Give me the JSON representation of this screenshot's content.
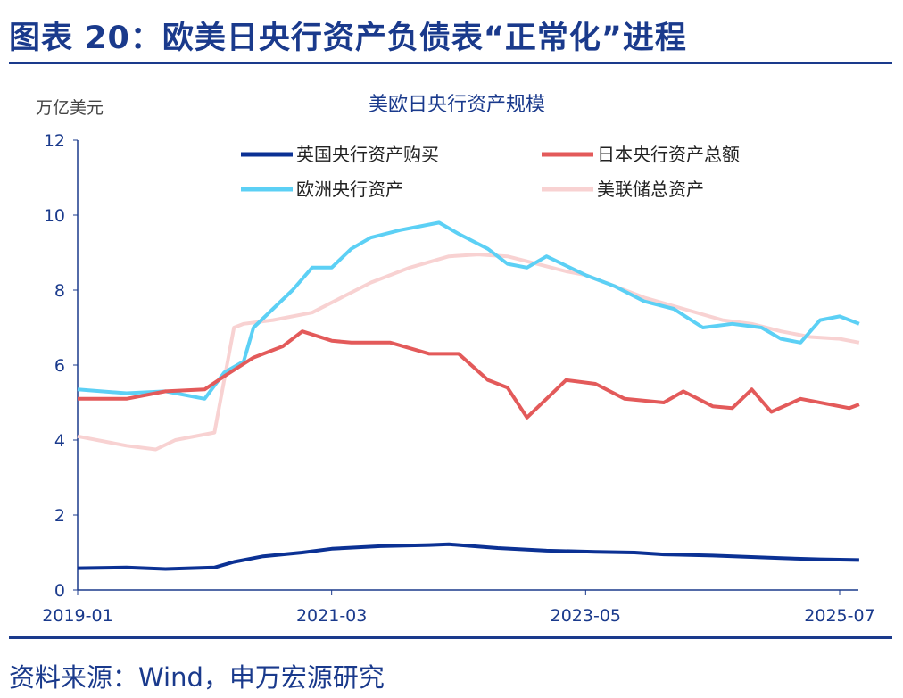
{
  "header": {
    "title": "图表 20：欧美日央行资产负债表“正常化”进程"
  },
  "footer": {
    "source": "资料来源：Wind，申万宏源研究"
  },
  "chart_data": {
    "type": "line",
    "title": "美欧日央行资产规模",
    "ylabel": "万亿美元",
    "xlabel": "",
    "ylim": [
      0,
      12
    ],
    "yticks": [
      "0",
      "2",
      "4",
      "6",
      "8",
      "10",
      "12"
    ],
    "xticks": [
      "2019-01",
      "2021-03",
      "2023-05",
      "2025-07"
    ],
    "grid": false,
    "legend": "top",
    "series": [
      {
        "name": "英国央行资产购买",
        "color": "#0b3194",
        "points": [
          [
            "2019-01",
            0.58
          ],
          [
            "2019-06",
            0.6
          ],
          [
            "2019-10",
            0.56
          ],
          [
            "2020-03",
            0.6
          ],
          [
            "2020-05",
            0.75
          ],
          [
            "2020-08",
            0.9
          ],
          [
            "2020-12",
            1.0
          ],
          [
            "2021-03",
            1.1
          ],
          [
            "2021-08",
            1.17
          ],
          [
            "2022-01",
            1.2
          ],
          [
            "2022-03",
            1.22
          ],
          [
            "2022-08",
            1.12
          ],
          [
            "2023-01",
            1.05
          ],
          [
            "2023-06",
            1.02
          ],
          [
            "2023-10",
            1.0
          ],
          [
            "2024-01",
            0.95
          ],
          [
            "2024-06",
            0.92
          ],
          [
            "2025-01",
            0.85
          ],
          [
            "2025-05",
            0.82
          ],
          [
            "2025-09",
            0.8
          ]
        ]
      },
      {
        "name": "日本央行资产总额",
        "color": "#e35a5a",
        "points": [
          [
            "2019-01",
            5.1
          ],
          [
            "2019-06",
            5.1
          ],
          [
            "2019-10",
            5.3
          ],
          [
            "2020-02",
            5.35
          ],
          [
            "2020-04",
            5.7
          ],
          [
            "2020-07",
            6.2
          ],
          [
            "2020-10",
            6.5
          ],
          [
            "2020-12",
            6.9
          ],
          [
            "2021-03",
            6.65
          ],
          [
            "2021-05",
            6.6
          ],
          [
            "2021-09",
            6.6
          ],
          [
            "2022-01",
            6.3
          ],
          [
            "2022-04",
            6.3
          ],
          [
            "2022-07",
            5.6
          ],
          [
            "2022-09",
            5.4
          ],
          [
            "2022-11",
            4.6
          ],
          [
            "2023-01",
            5.1
          ],
          [
            "2023-03",
            5.6
          ],
          [
            "2023-06",
            5.5
          ],
          [
            "2023-09",
            5.1
          ],
          [
            "2024-01",
            5.0
          ],
          [
            "2024-03",
            5.3
          ],
          [
            "2024-06",
            4.9
          ],
          [
            "2024-08",
            4.85
          ],
          [
            "2024-10",
            5.35
          ],
          [
            "2024-12",
            4.75
          ],
          [
            "2025-03",
            5.1
          ],
          [
            "2025-08",
            4.85
          ],
          [
            "2025-09",
            4.95
          ]
        ]
      },
      {
        "name": "欧洲央行资产",
        "color": "#5cd0f5",
        "points": [
          [
            "2019-01",
            5.35
          ],
          [
            "2019-06",
            5.25
          ],
          [
            "2019-10",
            5.3
          ],
          [
            "2020-02",
            5.1
          ],
          [
            "2020-04",
            5.8
          ],
          [
            "2020-06",
            6.1
          ],
          [
            "2020-07",
            7.0
          ],
          [
            "2020-09",
            7.5
          ],
          [
            "2020-11",
            8.0
          ],
          [
            "2021-01",
            8.6
          ],
          [
            "2021-03",
            8.6
          ],
          [
            "2021-05",
            9.1
          ],
          [
            "2021-07",
            9.4
          ],
          [
            "2021-10",
            9.6
          ],
          [
            "2021-12",
            9.7
          ],
          [
            "2022-02",
            9.8
          ],
          [
            "2022-04",
            9.5
          ],
          [
            "2022-07",
            9.1
          ],
          [
            "2022-09",
            8.7
          ],
          [
            "2022-11",
            8.6
          ],
          [
            "2023-01",
            8.9
          ],
          [
            "2023-05",
            8.4
          ],
          [
            "2023-08",
            8.1
          ],
          [
            "2023-11",
            7.7
          ],
          [
            "2024-02",
            7.5
          ],
          [
            "2024-05",
            7.0
          ],
          [
            "2024-08",
            7.1
          ],
          [
            "2024-11",
            7.0
          ],
          [
            "2025-01",
            6.7
          ],
          [
            "2025-03",
            6.6
          ],
          [
            "2025-05",
            7.2
          ],
          [
            "2025-07",
            7.3
          ],
          [
            "2025-09",
            7.1
          ]
        ]
      },
      {
        "name": "美联储总资产",
        "color": "#f8d2d2",
        "points": [
          [
            "2019-01",
            4.1
          ],
          [
            "2019-06",
            3.85
          ],
          [
            "2019-09",
            3.75
          ],
          [
            "2019-11",
            4.0
          ],
          [
            "2020-03",
            4.2
          ],
          [
            "2020-05",
            7.0
          ],
          [
            "2020-06",
            7.1
          ],
          [
            "2020-09",
            7.2
          ],
          [
            "2021-01",
            7.4
          ],
          [
            "2021-04",
            7.8
          ],
          [
            "2021-07",
            8.2
          ],
          [
            "2021-11",
            8.6
          ],
          [
            "2022-03",
            8.9
          ],
          [
            "2022-06",
            8.95
          ],
          [
            "2022-09",
            8.9
          ],
          [
            "2022-12",
            8.7
          ],
          [
            "2023-03",
            8.5
          ],
          [
            "2023-05",
            8.4
          ],
          [
            "2023-08",
            8.1
          ],
          [
            "2023-11",
            7.8
          ],
          [
            "2024-03",
            7.5
          ],
          [
            "2024-07",
            7.2
          ],
          [
            "2024-10",
            7.1
          ],
          [
            "2025-01",
            6.9
          ],
          [
            "2025-04",
            6.75
          ],
          [
            "2025-07",
            6.7
          ],
          [
            "2025-09",
            6.6
          ]
        ]
      }
    ]
  }
}
